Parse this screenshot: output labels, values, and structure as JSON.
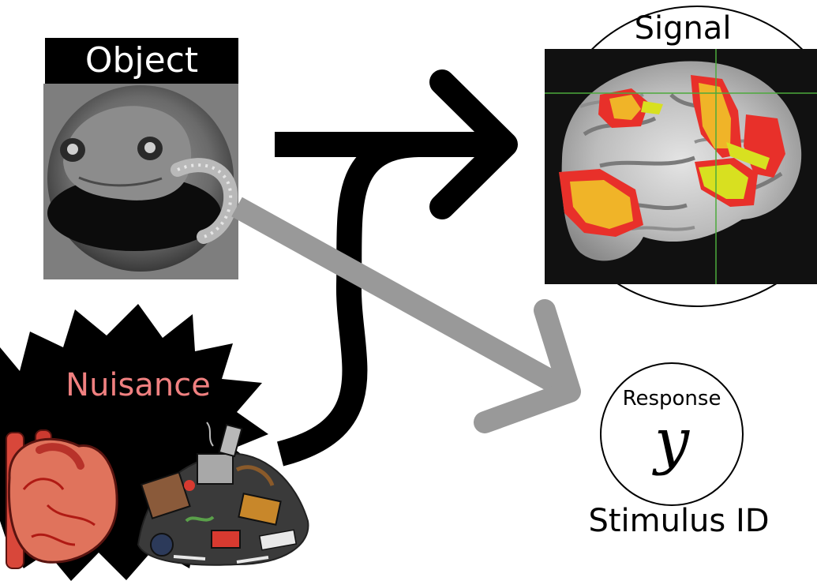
{
  "labels": {
    "object": "Object",
    "signal": "Signal",
    "nuisance": "Nuisance",
    "response": "Response",
    "response_symbol": "y",
    "stimulus": "Stimulus ID"
  },
  "nodes": {
    "object": {
      "icon": "salamander-photo"
    },
    "signal": {
      "icon": "brain-fmri-scan",
      "activation_colors": [
        "#e8302a",
        "#f0b428",
        "#d8e020"
      ]
    },
    "nuisance": {
      "icons": [
        "heart-icon",
        "junk-pile-icon"
      ]
    },
    "response": {
      "icon": "response-circle"
    }
  },
  "edges": [
    {
      "from": "object",
      "to": "signal",
      "color": "#000000"
    },
    {
      "from": "nuisance",
      "to": "signal",
      "color": "#000000"
    },
    {
      "from": "object",
      "to": "response",
      "color": "#999999"
    }
  ]
}
